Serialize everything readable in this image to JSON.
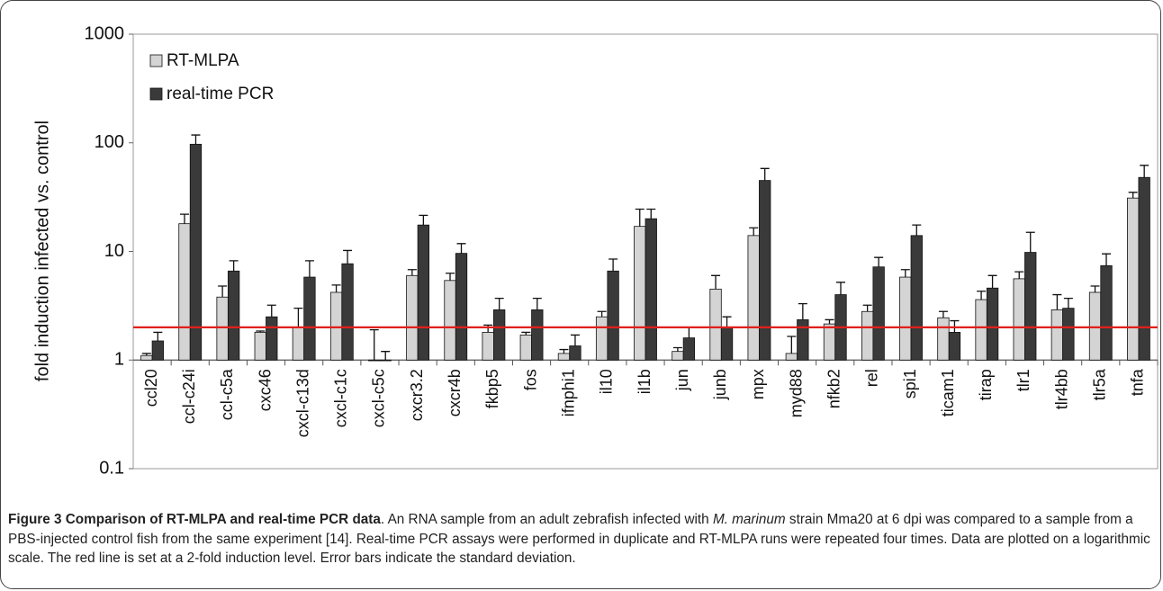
{
  "chart_data": {
    "type": "bar",
    "y_label": "fold induction infected vs. control",
    "categories": [
      "ccl20",
      "ccl-c24i",
      "ccl-c5a",
      "cxc46",
      "cxcl-c13d",
      "cxcl-c1c",
      "cxcl-c5c",
      "cxcr3.2",
      "cxcr4b",
      "fkbp5",
      "fos",
      "ifnphi1",
      "il10",
      "il1b",
      "jun",
      "junb",
      "mpx",
      "myd88",
      "nfkb2",
      "rel",
      "spi1",
      "ticam1",
      "tirap",
      "tlr1",
      "tlr4bb",
      "tlr5a",
      "tnfa"
    ],
    "series": [
      {
        "name": "RT-MLPA",
        "color": "#d4d4d4",
        "values": [
          1.1,
          18,
          3.8,
          1.8,
          2.0,
          4.2,
          1.0,
          6.0,
          5.4,
          1.8,
          1.7,
          1.15,
          2.5,
          17,
          1.2,
          4.5,
          14,
          1.15,
          2.15,
          2.8,
          5.8,
          2.45,
          3.6,
          5.6,
          2.9,
          4.2,
          31
        ],
        "errors": [
          0.05,
          4,
          1.0,
          0.05,
          1.0,
          0.7,
          0.9,
          0.8,
          0.9,
          0.3,
          0.1,
          0.1,
          0.3,
          7.5,
          0.1,
          1.5,
          2.5,
          0.5,
          0.2,
          0.4,
          1.0,
          0.35,
          0.7,
          0.9,
          1.1,
          0.6,
          4
        ]
      },
      {
        "name": "real-time PCR",
        "color": "#3a3a3a",
        "values": [
          1.5,
          97,
          6.6,
          2.5,
          5.8,
          7.7,
          1.0,
          17.5,
          9.6,
          2.9,
          2.9,
          1.35,
          6.6,
          20,
          1.6,
          2.0,
          45,
          2.35,
          4.0,
          7.2,
          14,
          1.8,
          4.6,
          9.8,
          3.0,
          7.4,
          48
        ],
        "errors": [
          0.3,
          21,
          1.6,
          0.7,
          2.4,
          2.5,
          0.2,
          4,
          2.2,
          0.8,
          0.8,
          0.35,
          1.9,
          4.5,
          0.4,
          0.5,
          13,
          0.95,
          1.2,
          1.6,
          3.5,
          0.5,
          1.4,
          5.2,
          0.7,
          2.1,
          14
        ]
      }
    ],
    "reference_line": {
      "value": 2,
      "color": "#e0201b"
    },
    "yscale": "log",
    "ylim": [
      0.1,
      1000
    ],
    "yticks": [
      0.1,
      1,
      10,
      100,
      1000
    ],
    "grid": false,
    "legend": "top-left"
  },
  "caption": {
    "title": "Figure 3 Comparison of RT-MLPA and real-time PCR data",
    "parts": [
      ". An RNA sample from an adult zebrafish infected with ",
      "M. marinum",
      " strain Mma20 at 6 dpi was compared to a sample from a PBS-injected control fish from the same experiment [14]. Real-time PCR assays were performed in duplicate and RT-MLPA runs were repeated four times. Data are plotted on a logarithmic scale. The red line is set at a 2-fold induction level. Error bars indicate the standard deviation."
    ]
  }
}
